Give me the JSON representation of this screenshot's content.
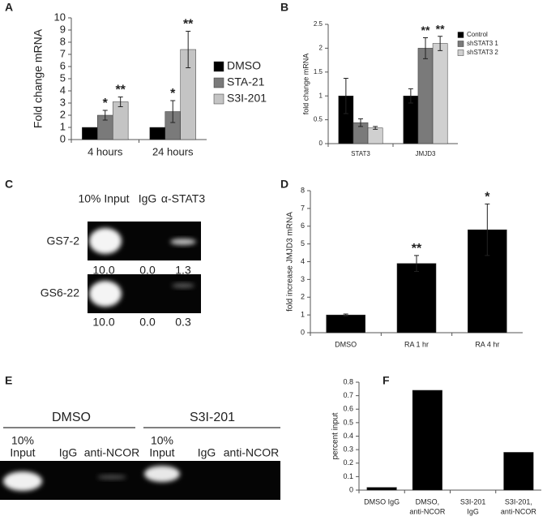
{
  "panel_labels": [
    "A",
    "B",
    "C",
    "D",
    "E",
    "F"
  ],
  "chart_data": [
    {
      "type": "bar",
      "y_label": "Fold change mRNA",
      "categories": [
        "4 hours",
        "24 hours"
      ],
      "series": [
        {
          "name": "DMSO",
          "color": "#000000",
          "values": [
            1,
            1
          ]
        },
        {
          "name": "STA-21",
          "color": "#7a7a7a",
          "values": [
            2.0,
            2.3
          ],
          "errors": [
            0.4,
            0.9
          ],
          "significance": [
            "*",
            "*"
          ]
        },
        {
          "name": "S3I-201",
          "color": "#c4c4c4",
          "values": [
            3.1,
            7.4
          ],
          "errors": [
            0.4,
            1.5
          ],
          "significance": [
            "**",
            "**"
          ]
        }
      ],
      "ylim": [
        0,
        10
      ],
      "yticks": [
        0,
        1,
        2,
        3,
        4,
        5,
        6,
        7,
        8,
        9,
        10
      ],
      "legend": "right"
    },
    {
      "type": "bar",
      "y_label": "fold change mRNA",
      "categories": [
        "STAT3",
        "JMJD3"
      ],
      "series": [
        {
          "name": "Control",
          "color": "#000000",
          "values": [
            1,
            1
          ],
          "errors": [
            0.37,
            0.15
          ]
        },
        {
          "name": "shSTAT3 1",
          "color": "#7a7a7a",
          "values": [
            0.44,
            2.0
          ],
          "errors": [
            0.08,
            0.22
          ],
          "significance": [
            null,
            "**"
          ]
        },
        {
          "name": "shSTAT3 2",
          "color": "#d0d0d0",
          "values": [
            0.33,
            2.1
          ],
          "errors": [
            0.03,
            0.15
          ],
          "significance": [
            null,
            "**"
          ]
        }
      ],
      "ylim": [
        0,
        2.5
      ],
      "yticks": [
        0,
        0.5,
        1,
        1.5,
        2,
        2.5
      ],
      "legend": "top-right"
    },
    {
      "type": "bar",
      "y_label": "fold increase JMJD3 mRNA",
      "categories": [
        "DMSO",
        "RA 1 hr",
        "RA 4 hr"
      ],
      "series": [
        {
          "color": "#000000",
          "values": [
            1,
            3.9,
            5.8
          ],
          "errors": [
            0.05,
            0.45,
            1.45
          ],
          "significance": [
            null,
            "**",
            "*"
          ]
        }
      ],
      "ylim": [
        0,
        8
      ],
      "yticks": [
        0,
        1,
        2,
        3,
        4,
        5,
        6,
        7,
        8
      ]
    },
    {
      "type": "bar",
      "y_label": "percent input",
      "categories": [
        [
          "DMSO IgG"
        ],
        [
          "DMSO,",
          "anti-NCOR"
        ],
        [
          "S3I-201",
          "IgG"
        ],
        [
          "S3I-201,",
          "anti-NCOR"
        ]
      ],
      "series": [
        {
          "color": "#000000",
          "values": [
            0.02,
            0.74,
            0,
            0.28
          ]
        }
      ],
      "ylim": [
        0,
        0.8
      ],
      "yticks": [
        0,
        0.1,
        0.2,
        0.3,
        0.4,
        0.5,
        0.6,
        0.7,
        0.8
      ]
    }
  ],
  "gel_c": {
    "columns": [
      "10% Input",
      "IgG",
      "α-STAT3"
    ],
    "rows": [
      {
        "label": "GS7-2",
        "values": [
          "10.0",
          "0.0",
          "1.3"
        ]
      },
      {
        "label": "GS6-22",
        "values": [
          "10.0",
          "0.0",
          "0.3"
        ]
      }
    ]
  },
  "gel_e": {
    "groups": [
      "DMSO",
      "S3I-201"
    ],
    "lanes": [
      [
        "10%",
        "Input"
      ],
      [
        "IgG"
      ],
      [
        "anti-NCOR"
      ],
      [
        "10%",
        "Input"
      ],
      [
        "IgG"
      ],
      [
        "anti-NCOR"
      ]
    ]
  }
}
